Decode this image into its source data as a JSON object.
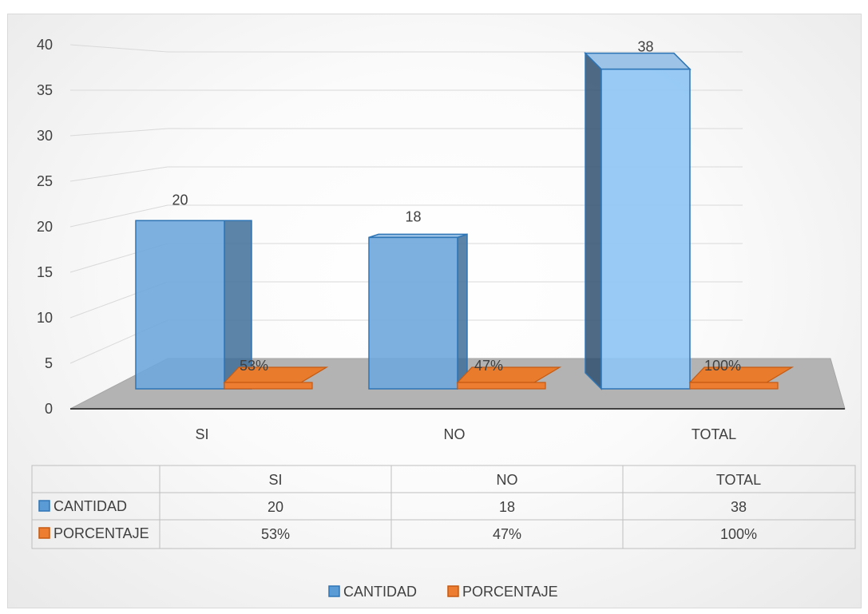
{
  "chart_data": {
    "type": "bar",
    "categories": [
      "SI",
      "NO",
      "TOTAL"
    ],
    "series": [
      {
        "name": "CANTIDAD",
        "values": [
          20,
          18,
          38
        ],
        "labels": [
          "20",
          "18",
          "38"
        ],
        "color": "#5b9bd5"
      },
      {
        "name": "PORCENTAJE",
        "values": [
          0.53,
          0.47,
          1.0
        ],
        "labels": [
          "53%",
          "47%",
          "100%"
        ],
        "color": "#ed7d31"
      }
    ],
    "ylim": [
      0,
      40
    ],
    "yticks": [
      "0",
      "5",
      "10",
      "15",
      "20",
      "25",
      "30",
      "35",
      "40"
    ],
    "grid": true,
    "legend": "bottom",
    "data_table": {
      "headers": [
        "SI",
        "NO",
        "TOTAL"
      ],
      "rows": [
        {
          "label": "CANTIDAD",
          "cells": [
            "20",
            "18",
            "38"
          ]
        },
        {
          "label": "PORCENTAJE",
          "cells": [
            "53%",
            "47%",
            "100%"
          ]
        }
      ]
    }
  }
}
